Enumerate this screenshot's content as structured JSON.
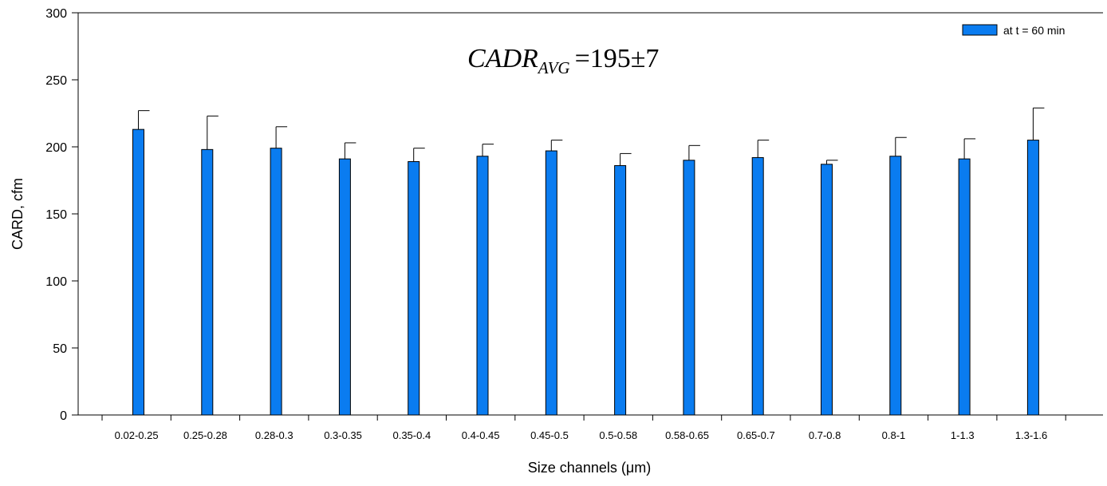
{
  "chart_data": {
    "type": "bar",
    "title": "",
    "xlabel": "Size channels (μm)",
    "ylabel": "CARD, cfm",
    "ylim": [
      0,
      300
    ],
    "yticks": [
      0,
      50,
      100,
      150,
      200,
      250,
      300
    ],
    "categories": [
      "0.02-0.25",
      "0.25-0.28",
      "0.28-0.3",
      "0.3-0.35",
      "0.35-0.4",
      "0.4-0.45",
      "0.45-0.5",
      "0.5-0.58",
      "0.58-0.65",
      "0.65-0.7",
      "0.7-0.8",
      "0.8-1",
      "1-1.3",
      "1.3-1.6"
    ],
    "series": [
      {
        "name": "at t = 60 min",
        "color": "#0a7cf0",
        "values": [
          213,
          198,
          199,
          191,
          189,
          193,
          197,
          186,
          190,
          192,
          187,
          193,
          191,
          205
        ],
        "error_upper": [
          14,
          25,
          16,
          12,
          10,
          9,
          8,
          9,
          11,
          13,
          3,
          14,
          15,
          24
        ]
      }
    ],
    "legend_position": "top-right",
    "grid": false,
    "annotation": {
      "main": "CADR",
      "subscript": "AVG",
      "value_text": "=195±7"
    }
  }
}
